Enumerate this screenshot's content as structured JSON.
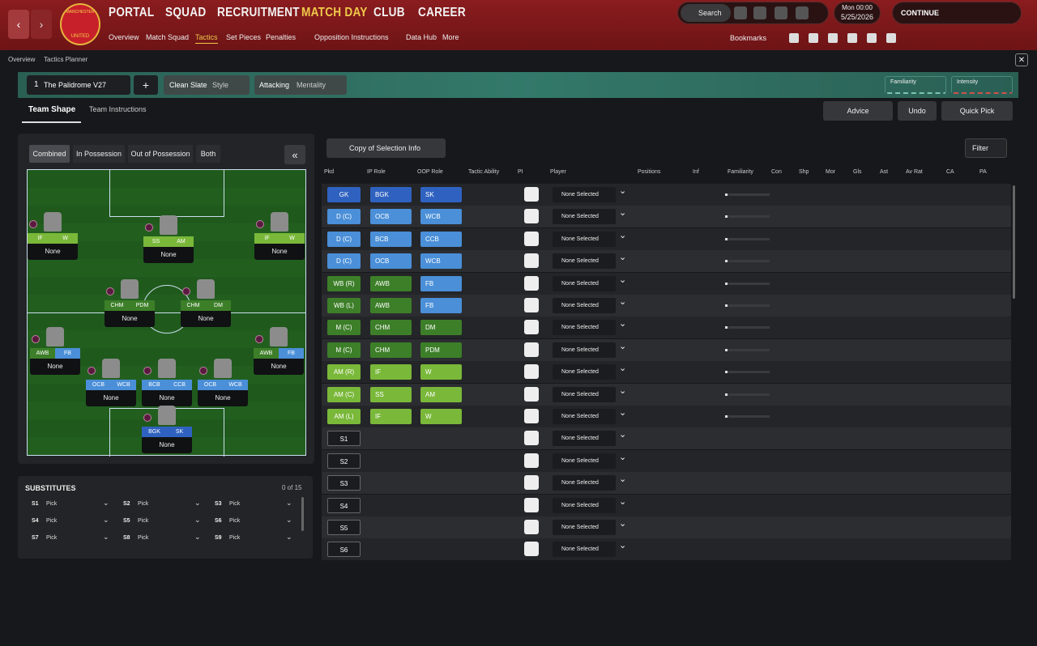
{
  "nav": {
    "crest_top": "MANCHESTER",
    "crest_bottom": "UNITED",
    "menu": [
      "PORTAL",
      "SQUAD",
      "RECRUITMENT",
      "MATCH DAY",
      "CLUB",
      "CAREER"
    ],
    "submenu": [
      "Overview",
      "Match Squad",
      "Tactics",
      "Set Pieces",
      "Penalties",
      "Opposition Instructions",
      "Data Hub",
      "More"
    ],
    "search": "Search",
    "day_time": "Mon 00:00",
    "date": "5/25/2026",
    "continue": "CONTINUE",
    "bookmarks": "Bookmarks"
  },
  "breadcrumb": [
    "Overview",
    "Tactics Planner"
  ],
  "tactic_bar": {
    "slot": "1",
    "name": "The Palidrome V27",
    "style_value": "Clean Slate",
    "style_label": "Style",
    "mentality_value": "Attacking",
    "mentality_label": "Mentality",
    "familiarity": "Familiarity",
    "intensity": "Intensity"
  },
  "tabs": [
    "Team Shape",
    "Team Instructions"
  ],
  "actions": [
    "Advice",
    "Undo",
    "Quick Pick"
  ],
  "views": [
    "Combined",
    "In Possession",
    "Out of Possession",
    "Both"
  ],
  "pitch": [
    {
      "roles": [
        "IF",
        "W"
      ],
      "player": "None"
    },
    {
      "roles": [
        "SS",
        "AM"
      ],
      "player": "None"
    },
    {
      "roles": [
        "IF",
        "W"
      ],
      "player": "None"
    },
    {
      "roles": [
        "CHM",
        "PDM"
      ],
      "player": "None"
    },
    {
      "roles": [
        "CHM",
        "DM"
      ],
      "player": "None"
    },
    {
      "roles": [
        "AWB",
        "FB"
      ],
      "player": "None"
    },
    {
      "roles": [
        "AWB",
        "FB"
      ],
      "player": "None"
    },
    {
      "roles": [
        "OCB",
        "WCB"
      ],
      "player": "None"
    },
    {
      "roles": [
        "BCB",
        "CCB"
      ],
      "player": "None"
    },
    {
      "roles": [
        "OCB",
        "WCB"
      ],
      "player": "None"
    },
    {
      "roles": [
        "BGK",
        "SK"
      ],
      "player": "None"
    }
  ],
  "substitutes": {
    "title": "SUBSTITUTES",
    "count": "0 of 15",
    "slots": [
      {
        "label": "S1",
        "value": "Pick"
      },
      {
        "label": "S2",
        "value": "Pick"
      },
      {
        "label": "S3",
        "value": "Pick"
      },
      {
        "label": "S4",
        "value": "Pick"
      },
      {
        "label": "S5",
        "value": "Pick"
      },
      {
        "label": "S6",
        "value": "Pick"
      },
      {
        "label": "S7",
        "value": "Pick"
      },
      {
        "label": "S8",
        "value": "Pick"
      },
      {
        "label": "S9",
        "value": "Pick"
      }
    ]
  },
  "table": {
    "selection": "Copy of Selection Info",
    "filter": "Filter",
    "headers": [
      "Pkd",
      "IP Role",
      "OOP Role",
      "Tactic Ability",
      "PI",
      "Player",
      "Positions",
      "Inf",
      "Familiarity",
      "Con",
      "Shp",
      "Mor",
      "Gls",
      "Ast",
      "Av Rat",
      "CA",
      "PA"
    ],
    "rows": [
      {
        "pkd": "GK",
        "ip": "BGK",
        "oop": "SK",
        "player": "None Selected"
      },
      {
        "pkd": "D (C)",
        "ip": "OCB",
        "oop": "WCB",
        "player": "None Selected"
      },
      {
        "pkd": "D (C)",
        "ip": "BCB",
        "oop": "CCB",
        "player": "None Selected"
      },
      {
        "pkd": "D (C)",
        "ip": "OCB",
        "oop": "WCB",
        "player": "None Selected"
      },
      {
        "pkd": "WB (R)",
        "ip": "AWB",
        "oop": "FB",
        "player": "None Selected"
      },
      {
        "pkd": "WB (L)",
        "ip": "AWB",
        "oop": "FB",
        "player": "None Selected"
      },
      {
        "pkd": "M (C)",
        "ip": "CHM",
        "oop": "DM",
        "player": "None Selected"
      },
      {
        "pkd": "M (C)",
        "ip": "CHM",
        "oop": "PDM",
        "player": "None Selected"
      },
      {
        "pkd": "AM (R)",
        "ip": "IF",
        "oop": "W",
        "player": "None Selected"
      },
      {
        "pkd": "AM (C)",
        "ip": "SS",
        "oop": "AM",
        "player": "None Selected"
      },
      {
        "pkd": "AM (L)",
        "ip": "IF",
        "oop": "W",
        "player": "None Selected"
      },
      {
        "pkd": "S1",
        "player": "None Selected"
      },
      {
        "pkd": "S2",
        "player": "None Selected"
      },
      {
        "pkd": "S3",
        "player": "None Selected"
      },
      {
        "pkd": "S4",
        "player": "None Selected"
      },
      {
        "pkd": "S5",
        "player": "None Selected"
      },
      {
        "pkd": "S6",
        "player": "None Selected"
      }
    ]
  }
}
